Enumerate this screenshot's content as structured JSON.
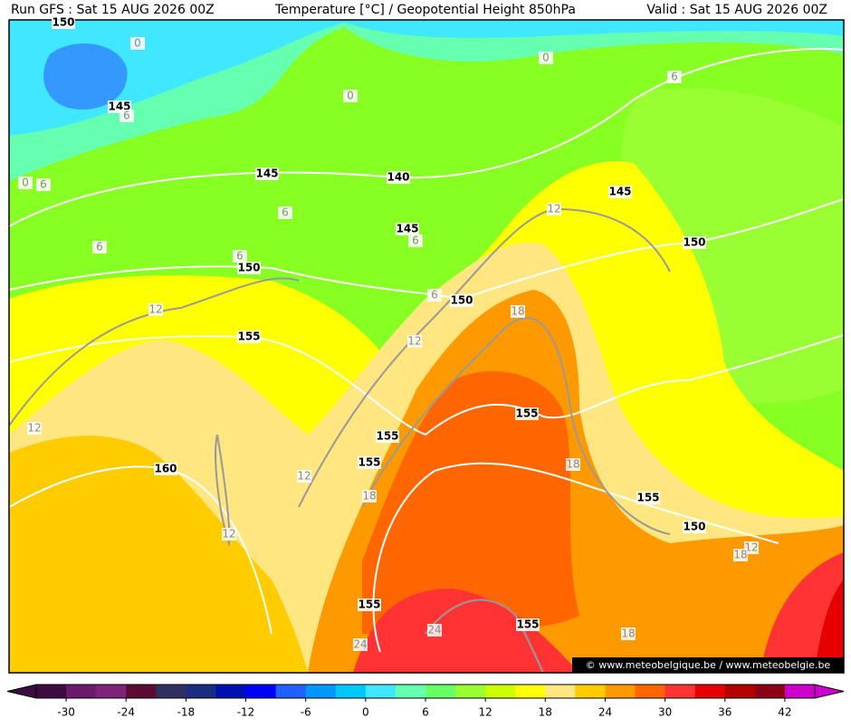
{
  "header": {
    "left": "Run GFS : Sat 15 AUG 2026 00Z",
    "center": "Temperature [°C] / Geopotential Height 850hPa",
    "right": "Valid : Sat 15 AUG 2026 00Z"
  },
  "map": {
    "height_labels": [
      150,
      145,
      145,
      140,
      145,
      145,
      150,
      150,
      150,
      155,
      155,
      155,
      155,
      160,
      155,
      150,
      155,
      155
    ],
    "temp_labels": [
      0,
      0,
      0,
      0,
      6,
      6,
      6,
      6,
      6,
      6,
      6,
      6,
      12,
      12,
      12,
      12,
      12,
      12,
      12,
      18,
      18,
      18,
      18,
      18,
      24,
      24
    ],
    "watermark": "© www.meteobelgique.be / www.meteobelgie.be"
  },
  "colorbar": {
    "lim": [
      -33,
      45
    ],
    "ticks": [
      -30,
      -24,
      -18,
      -12,
      -6,
      0,
      6,
      12,
      18,
      24,
      30,
      36,
      42
    ],
    "colors": [
      "#3c0c40",
      "#6c1a6c",
      "#7e2478",
      "#5a0c32",
      "#303060",
      "#1c2c80",
      "#0010b0",
      "#0000ff",
      "#2060ff",
      "#0096ff",
      "#00c8ff",
      "#40e8ff",
      "#66ffb0",
      "#66ff66",
      "#99ff33",
      "#ccff00",
      "#ffff00",
      "#ffe680",
      "#ffcc00",
      "#ff9900",
      "#ff6600",
      "#ff3333",
      "#e60000",
      "#b40000",
      "#8c0014",
      "#cc00cc"
    ]
  }
}
